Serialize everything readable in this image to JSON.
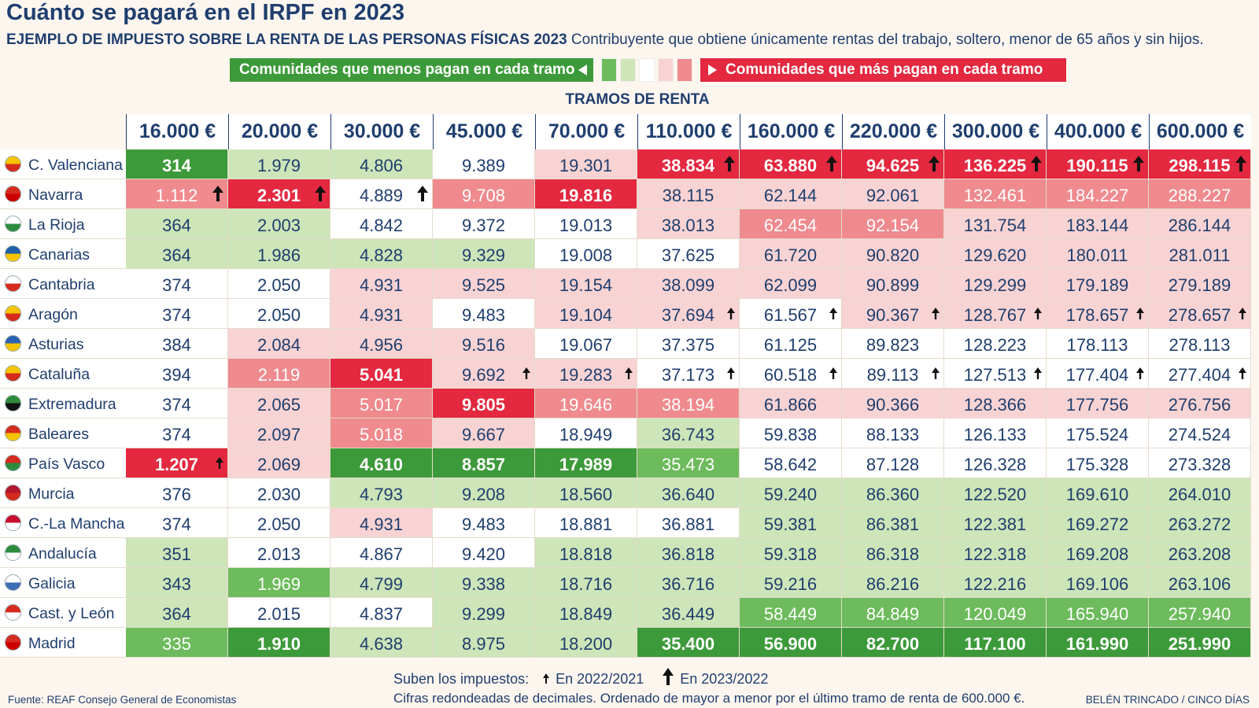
{
  "title": "Cuánto se pagará en el IRPF en 2023",
  "subtitle_bold": "EJEMPLO DE IMPUESTO SOBRE LA RENTA DE LAS PERSONAS FÍSICAS 2023",
  "subtitle": "Contribuyente que obtiene únicamente rentas del trabajo, soltero, menor de 65 años y sin hijos.",
  "legend": {
    "less": "Comunidades que menos pagan en cada tramo",
    "more": "Comunidades que más pagan en cada tramo",
    "less_color": "#3d9a3a",
    "more_color": "#e3283f",
    "scale": [
      "#6dbb5c",
      "#cde5b8",
      "#ffffff",
      "#f8d3d3",
      "#ef8a8e"
    ]
  },
  "table": {
    "group_header": "TRAMOS DE RENTA",
    "columns": [
      "16.000 €",
      "20.000 €",
      "30.000 €",
      "45.000 €",
      "70.000 €",
      "110.000 €",
      "160.000 €",
      "220.000 €",
      "300.000 €",
      "400.000 €",
      "600.000 €"
    ],
    "rows": [
      {
        "name": "C. Valenciana",
        "values": [
          "314",
          "1.979",
          "4.806",
          "9.389",
          "19.301",
          "38.834",
          "63.880",
          "94.625",
          "136.225",
          "190.115",
          "298.115"
        ],
        "colors": [
          "#3d9a3a",
          "#cde5b8",
          "#cde5b8",
          "#ffffff",
          "#f8d3d3",
          "#e3283f",
          "#e3283f",
          "#e3283f",
          "#e3283f",
          "#e3283f",
          "#e3283f"
        ],
        "arrows": [
          null,
          null,
          null,
          null,
          null,
          "big",
          "big",
          "big",
          "big",
          "big",
          "big"
        ]
      },
      {
        "name": "Navarra",
        "values": [
          "1.112",
          "2.301",
          "4.889",
          "9.708",
          "19.816",
          "38.115",
          "62.144",
          "92.061",
          "132.461",
          "184.227",
          "288.227"
        ],
        "colors": [
          "#ef8a8e",
          "#e3283f",
          "#ffffff",
          "#ef8a8e",
          "#e3283f",
          "#f8d3d3",
          "#f8d3d3",
          "#f8d3d3",
          "#ef8a8e",
          "#ef8a8e",
          "#ef8a8e"
        ],
        "arrows": [
          "big",
          "big",
          "big",
          null,
          null,
          null,
          null,
          null,
          null,
          null,
          null
        ]
      },
      {
        "name": "La Rioja",
        "values": [
          "364",
          "2.003",
          "4.842",
          "9.372",
          "19.013",
          "38.013",
          "62.454",
          "92.154",
          "131.754",
          "183.144",
          "286.144"
        ],
        "colors": [
          "#cde5b8",
          "#cde5b8",
          "#ffffff",
          "#ffffff",
          "#ffffff",
          "#f8d3d3",
          "#ef8a8e",
          "#ef8a8e",
          "#f8d3d3",
          "#f8d3d3",
          "#f8d3d3"
        ],
        "arrows": [
          null,
          null,
          null,
          null,
          null,
          null,
          null,
          null,
          null,
          null,
          null
        ]
      },
      {
        "name": "Canarias",
        "values": [
          "364",
          "1.986",
          "4.828",
          "9.329",
          "19.008",
          "37.625",
          "61.720",
          "90.820",
          "129.620",
          "180.011",
          "281.011"
        ],
        "colors": [
          "#cde5b8",
          "#cde5b8",
          "#cde5b8",
          "#cde5b8",
          "#ffffff",
          "#ffffff",
          "#f8d3d3",
          "#f8d3d3",
          "#f8d3d3",
          "#f8d3d3",
          "#f8d3d3"
        ],
        "arrows": [
          null,
          null,
          null,
          null,
          null,
          null,
          null,
          null,
          null,
          null,
          null
        ]
      },
      {
        "name": "Cantabria",
        "values": [
          "374",
          "2.050",
          "4.931",
          "9.525",
          "19.154",
          "38.099",
          "62.099",
          "90.899",
          "129.299",
          "179.189",
          "279.189"
        ],
        "colors": [
          "#ffffff",
          "#ffffff",
          "#f8d3d3",
          "#f8d3d3",
          "#f8d3d3",
          "#f8d3d3",
          "#f8d3d3",
          "#f8d3d3",
          "#f8d3d3",
          "#f8d3d3",
          "#f8d3d3"
        ],
        "arrows": [
          null,
          null,
          null,
          null,
          null,
          null,
          null,
          null,
          null,
          null,
          null
        ]
      },
      {
        "name": "Aragón",
        "values": [
          "374",
          "2.050",
          "4.931",
          "9.483",
          "19.104",
          "37.694",
          "61.567",
          "90.367",
          "128.767",
          "178.657",
          "278.657"
        ],
        "colors": [
          "#ffffff",
          "#ffffff",
          "#f8d3d3",
          "#ffffff",
          "#f8d3d3",
          "#f8d3d3",
          "#ffffff",
          "#f8d3d3",
          "#f8d3d3",
          "#f8d3d3",
          "#f8d3d3"
        ],
        "arrows": [
          null,
          null,
          null,
          null,
          null,
          "small",
          "small",
          "small",
          "small",
          "small",
          "small"
        ]
      },
      {
        "name": "Asturias",
        "values": [
          "384",
          "2.084",
          "4.956",
          "9.516",
          "19.067",
          "37.375",
          "61.125",
          "89.823",
          "128.223",
          "178.113",
          "278.113"
        ],
        "colors": [
          "#ffffff",
          "#f8d3d3",
          "#f8d3d3",
          "#f8d3d3",
          "#ffffff",
          "#ffffff",
          "#ffffff",
          "#ffffff",
          "#ffffff",
          "#ffffff",
          "#ffffff"
        ],
        "arrows": [
          null,
          null,
          null,
          null,
          null,
          null,
          null,
          null,
          null,
          null,
          null
        ]
      },
      {
        "name": "Cataluña",
        "values": [
          "394",
          "2.119",
          "5.041",
          "9.692",
          "19.283",
          "37.173",
          "60.518",
          "89.113",
          "127.513",
          "177.404",
          "277.404"
        ],
        "colors": [
          "#ffffff",
          "#ef8a8e",
          "#e3283f",
          "#f8d3d3",
          "#f8d3d3",
          "#ffffff",
          "#ffffff",
          "#ffffff",
          "#ffffff",
          "#ffffff",
          "#ffffff"
        ],
        "arrows": [
          null,
          null,
          null,
          "small",
          "small",
          "small",
          "small",
          "small",
          "small",
          "small",
          "small"
        ]
      },
      {
        "name": "Extremadura",
        "values": [
          "374",
          "2.065",
          "5.017",
          "9.805",
          "19.646",
          "38.194",
          "61.866",
          "90.366",
          "128.366",
          "177.756",
          "276.756"
        ],
        "colors": [
          "#ffffff",
          "#f8d3d3",
          "#ef8a8e",
          "#e3283f",
          "#ef8a8e",
          "#ef8a8e",
          "#f8d3d3",
          "#f8d3d3",
          "#f8d3d3",
          "#f8d3d3",
          "#f8d3d3"
        ],
        "arrows": [
          null,
          null,
          null,
          null,
          null,
          null,
          null,
          null,
          null,
          null,
          null
        ]
      },
      {
        "name": "Baleares",
        "values": [
          "374",
          "2.097",
          "5.018",
          "9.667",
          "18.949",
          "36.743",
          "59.838",
          "88.133",
          "126.133",
          "175.524",
          "274.524"
        ],
        "colors": [
          "#ffffff",
          "#f8d3d3",
          "#ef8a8e",
          "#f8d3d3",
          "#ffffff",
          "#cde5b8",
          "#ffffff",
          "#ffffff",
          "#ffffff",
          "#ffffff",
          "#ffffff"
        ],
        "arrows": [
          null,
          null,
          null,
          null,
          null,
          null,
          null,
          null,
          null,
          null,
          null
        ]
      },
      {
        "name": "País Vasco",
        "values": [
          "1.207",
          "2.069",
          "4.610",
          "8.857",
          "17.989",
          "35.473",
          "58.642",
          "87.128",
          "126.328",
          "175.328",
          "273.328"
        ],
        "colors": [
          "#e3283f",
          "#f8d3d3",
          "#3d9a3a",
          "#3d9a3a",
          "#3d9a3a",
          "#6dbb5c",
          "#ffffff",
          "#ffffff",
          "#ffffff",
          "#ffffff",
          "#ffffff"
        ],
        "arrows": [
          "small",
          null,
          null,
          null,
          null,
          null,
          null,
          null,
          null,
          null,
          null
        ]
      },
      {
        "name": "Murcia",
        "values": [
          "376",
          "2.030",
          "4.793",
          "9.208",
          "18.560",
          "36.640",
          "59.240",
          "86.360",
          "122.520",
          "169.610",
          "264.010"
        ],
        "colors": [
          "#ffffff",
          "#ffffff",
          "#cde5b8",
          "#cde5b8",
          "#cde5b8",
          "#cde5b8",
          "#cde5b8",
          "#cde5b8",
          "#cde5b8",
          "#cde5b8",
          "#cde5b8"
        ],
        "arrows": [
          null,
          null,
          null,
          null,
          null,
          null,
          null,
          null,
          null,
          null,
          null
        ]
      },
      {
        "name": "C.-La Mancha",
        "values": [
          "374",
          "2.050",
          "4.931",
          "9.483",
          "18.881",
          "36.881",
          "59.381",
          "86.381",
          "122.381",
          "169.272",
          "263.272"
        ],
        "colors": [
          "#ffffff",
          "#ffffff",
          "#f8d3d3",
          "#ffffff",
          "#ffffff",
          "#ffffff",
          "#cde5b8",
          "#cde5b8",
          "#cde5b8",
          "#cde5b8",
          "#cde5b8"
        ],
        "arrows": [
          null,
          null,
          null,
          null,
          null,
          null,
          null,
          null,
          null,
          null,
          null
        ]
      },
      {
        "name": "Andalucía",
        "values": [
          "351",
          "2.013",
          "4.867",
          "9.420",
          "18.818",
          "36.818",
          "59.318",
          "86.318",
          "122.318",
          "169.208",
          "263.208"
        ],
        "colors": [
          "#cde5b8",
          "#ffffff",
          "#ffffff",
          "#ffffff",
          "#cde5b8",
          "#cde5b8",
          "#cde5b8",
          "#cde5b8",
          "#cde5b8",
          "#cde5b8",
          "#cde5b8"
        ],
        "arrows": [
          null,
          null,
          null,
          null,
          null,
          null,
          null,
          null,
          null,
          null,
          null
        ]
      },
      {
        "name": "Galicia",
        "values": [
          "343",
          "1.969",
          "4.799",
          "9.338",
          "18.716",
          "36.716",
          "59.216",
          "86.216",
          "122.216",
          "169.106",
          "263.106"
        ],
        "colors": [
          "#cde5b8",
          "#6dbb5c",
          "#cde5b8",
          "#cde5b8",
          "#cde5b8",
          "#cde5b8",
          "#cde5b8",
          "#cde5b8",
          "#cde5b8",
          "#cde5b8",
          "#cde5b8"
        ],
        "arrows": [
          null,
          null,
          null,
          null,
          null,
          null,
          null,
          null,
          null,
          null,
          null
        ]
      },
      {
        "name": "Cast. y León",
        "values": [
          "364",
          "2.015",
          "4.837",
          "9.299",
          "18.849",
          "36.449",
          "58.449",
          "84.849",
          "120.049",
          "165.940",
          "257.940"
        ],
        "colors": [
          "#cde5b8",
          "#ffffff",
          "#ffffff",
          "#cde5b8",
          "#cde5b8",
          "#cde5b8",
          "#6dbb5c",
          "#6dbb5c",
          "#6dbb5c",
          "#6dbb5c",
          "#6dbb5c"
        ],
        "arrows": [
          null,
          null,
          null,
          null,
          null,
          null,
          null,
          null,
          null,
          null,
          null
        ]
      },
      {
        "name": "Madrid",
        "values": [
          "335",
          "1.910",
          "4.638",
          "8.975",
          "18.200",
          "35.400",
          "56.900",
          "82.700",
          "117.100",
          "161.990",
          "251.990"
        ],
        "colors": [
          "#6dbb5c",
          "#3d9a3a",
          "#cde5b8",
          "#cde5b8",
          "#cde5b8",
          "#3d9a3a",
          "#3d9a3a",
          "#3d9a3a",
          "#3d9a3a",
          "#3d9a3a",
          "#3d9a3a"
        ],
        "arrows": [
          null,
          null,
          null,
          null,
          null,
          null,
          null,
          null,
          null,
          null,
          null
        ]
      }
    ]
  },
  "footer": {
    "arrows_label": "Suben los impuestos:",
    "small_arrow": "En 2022/2021",
    "big_arrow": "En 2023/2022",
    "note": "Cifras redondeadas de decimales. Ordenado de mayor a menor por el último tramo de renta de 600.000 €.",
    "source": "Fuente: REAF Consejo General de Economistas",
    "credit": "BELÉN TRINCADO / CINCO DÍAS"
  }
}
